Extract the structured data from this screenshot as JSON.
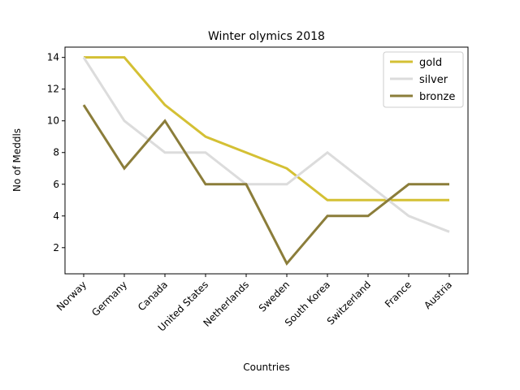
{
  "chart_data": {
    "type": "line",
    "title": "Winter olymics 2018",
    "xlabel": "Countries",
    "ylabel": "No of Meddls",
    "categories": [
      "Norway",
      "Germany",
      "Canada",
      "United States",
      "Netherlands",
      "Sweden",
      "South Korea",
      "Switzerland",
      "France",
      "Austria"
    ],
    "yticks": [
      2,
      4,
      6,
      8,
      10,
      12,
      14
    ],
    "ylim": [
      0.35,
      14.65
    ],
    "grid": false,
    "legend_position": "top-right",
    "series": [
      {
        "name": "gold",
        "color": "#d4c034",
        "values": [
          14,
          14,
          11,
          9,
          8,
          7,
          5,
          5,
          5,
          5
        ]
      },
      {
        "name": "silver",
        "color": "#dcdcdc",
        "values": [
          14,
          10,
          8,
          8,
          6,
          6,
          8,
          6,
          4,
          3
        ]
      },
      {
        "name": "bronze",
        "color": "#8b7d3a",
        "values": [
          11,
          7,
          10,
          6,
          6,
          1,
          4,
          4,
          6,
          6
        ]
      }
    ]
  }
}
